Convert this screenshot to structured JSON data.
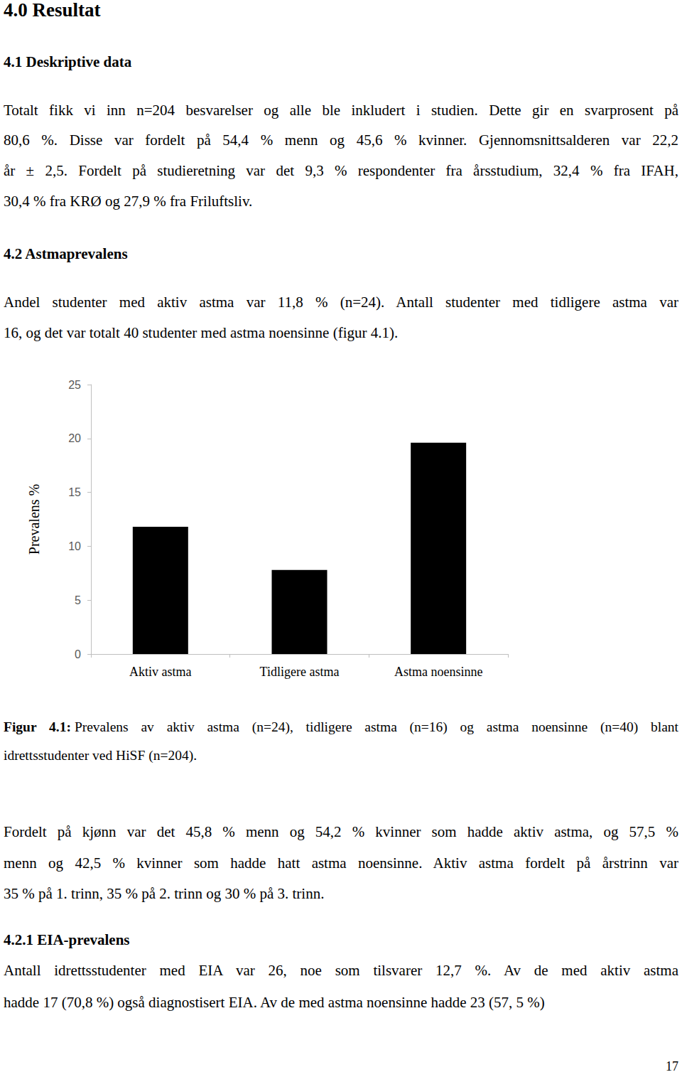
{
  "page": {
    "title": "4.0 Resultat",
    "blocks": [
      {
        "heading": "4.1 Deskriptive data"
      },
      {
        "lines": [
          "Totalt fikk vi inn n=204 besvarelser og alle ble inkludert i studien. Dette gir en svarprosent på",
          "80,6 %. Disse var fordelt på 54,4 % menn og 45,6 % kvinner. Gjennomsnittsalderen var 22,2",
          "år ± 2,5. Fordelt på studieretning var det 9,3 % respondenter fra årsstudium, 32,4 % fra IFAH,",
          "30,4 % fra KRØ og 27,9 % fra Friluftsliv."
        ]
      },
      {
        "heading": "4.2 Astmaprevalens"
      },
      {
        "lines": [
          "Andel studenter med aktiv astma var 11,8 % (n=24). Antall studenter med tidligere astma var",
          "16, og det var totalt 40 studenter med astma noensinne (figur 4.1)."
        ]
      },
      {
        "label": "Figur 4.1:",
        "lines": [
          "Prevalens av aktiv astma (n=24), tidligere astma (n=16) og astma noensinne (n=40) blant",
          "idrettsstudenter ved HiSF (n=204)."
        ]
      },
      {
        "lines": [
          "Fordelt på kjønn var det 45,8 % menn og 54,2 % kvinner som hadde aktiv astma, og 57,5 %",
          "menn og 42,5 % kvinner som hadde hatt astma noensinne. Aktiv astma fordelt på årstrinn var",
          "35 % på 1. trinn, 35 % på 2. trinn og 30 % på 3. trinn."
        ]
      },
      {
        "heading": "4.2.1 EIA-prevalens"
      },
      {
        "lines": [
          "Antall idrettsstudenter med EIA var 26, noe som tilsvarer 12,7 %. Av de med aktiv astma",
          "hadde 17 (70,8 %) også diagnostisert EIA. Av de med astma noensinne hadde 23 (57, 5 %)"
        ]
      }
    ],
    "page_number": "17"
  },
  "chart_data": {
    "type": "bar",
    "categories": [
      "Aktiv astma",
      "Tidligere astma",
      "Astma noensinne"
    ],
    "values": [
      11.8,
      7.8,
      19.6
    ],
    "color": "#000000",
    "y_label": "Prevalens %",
    "ylim": [
      0,
      25
    ],
    "yticks": [
      0,
      5,
      10,
      15,
      20,
      25
    ],
    "grid": false,
    "data_labels": false
  }
}
